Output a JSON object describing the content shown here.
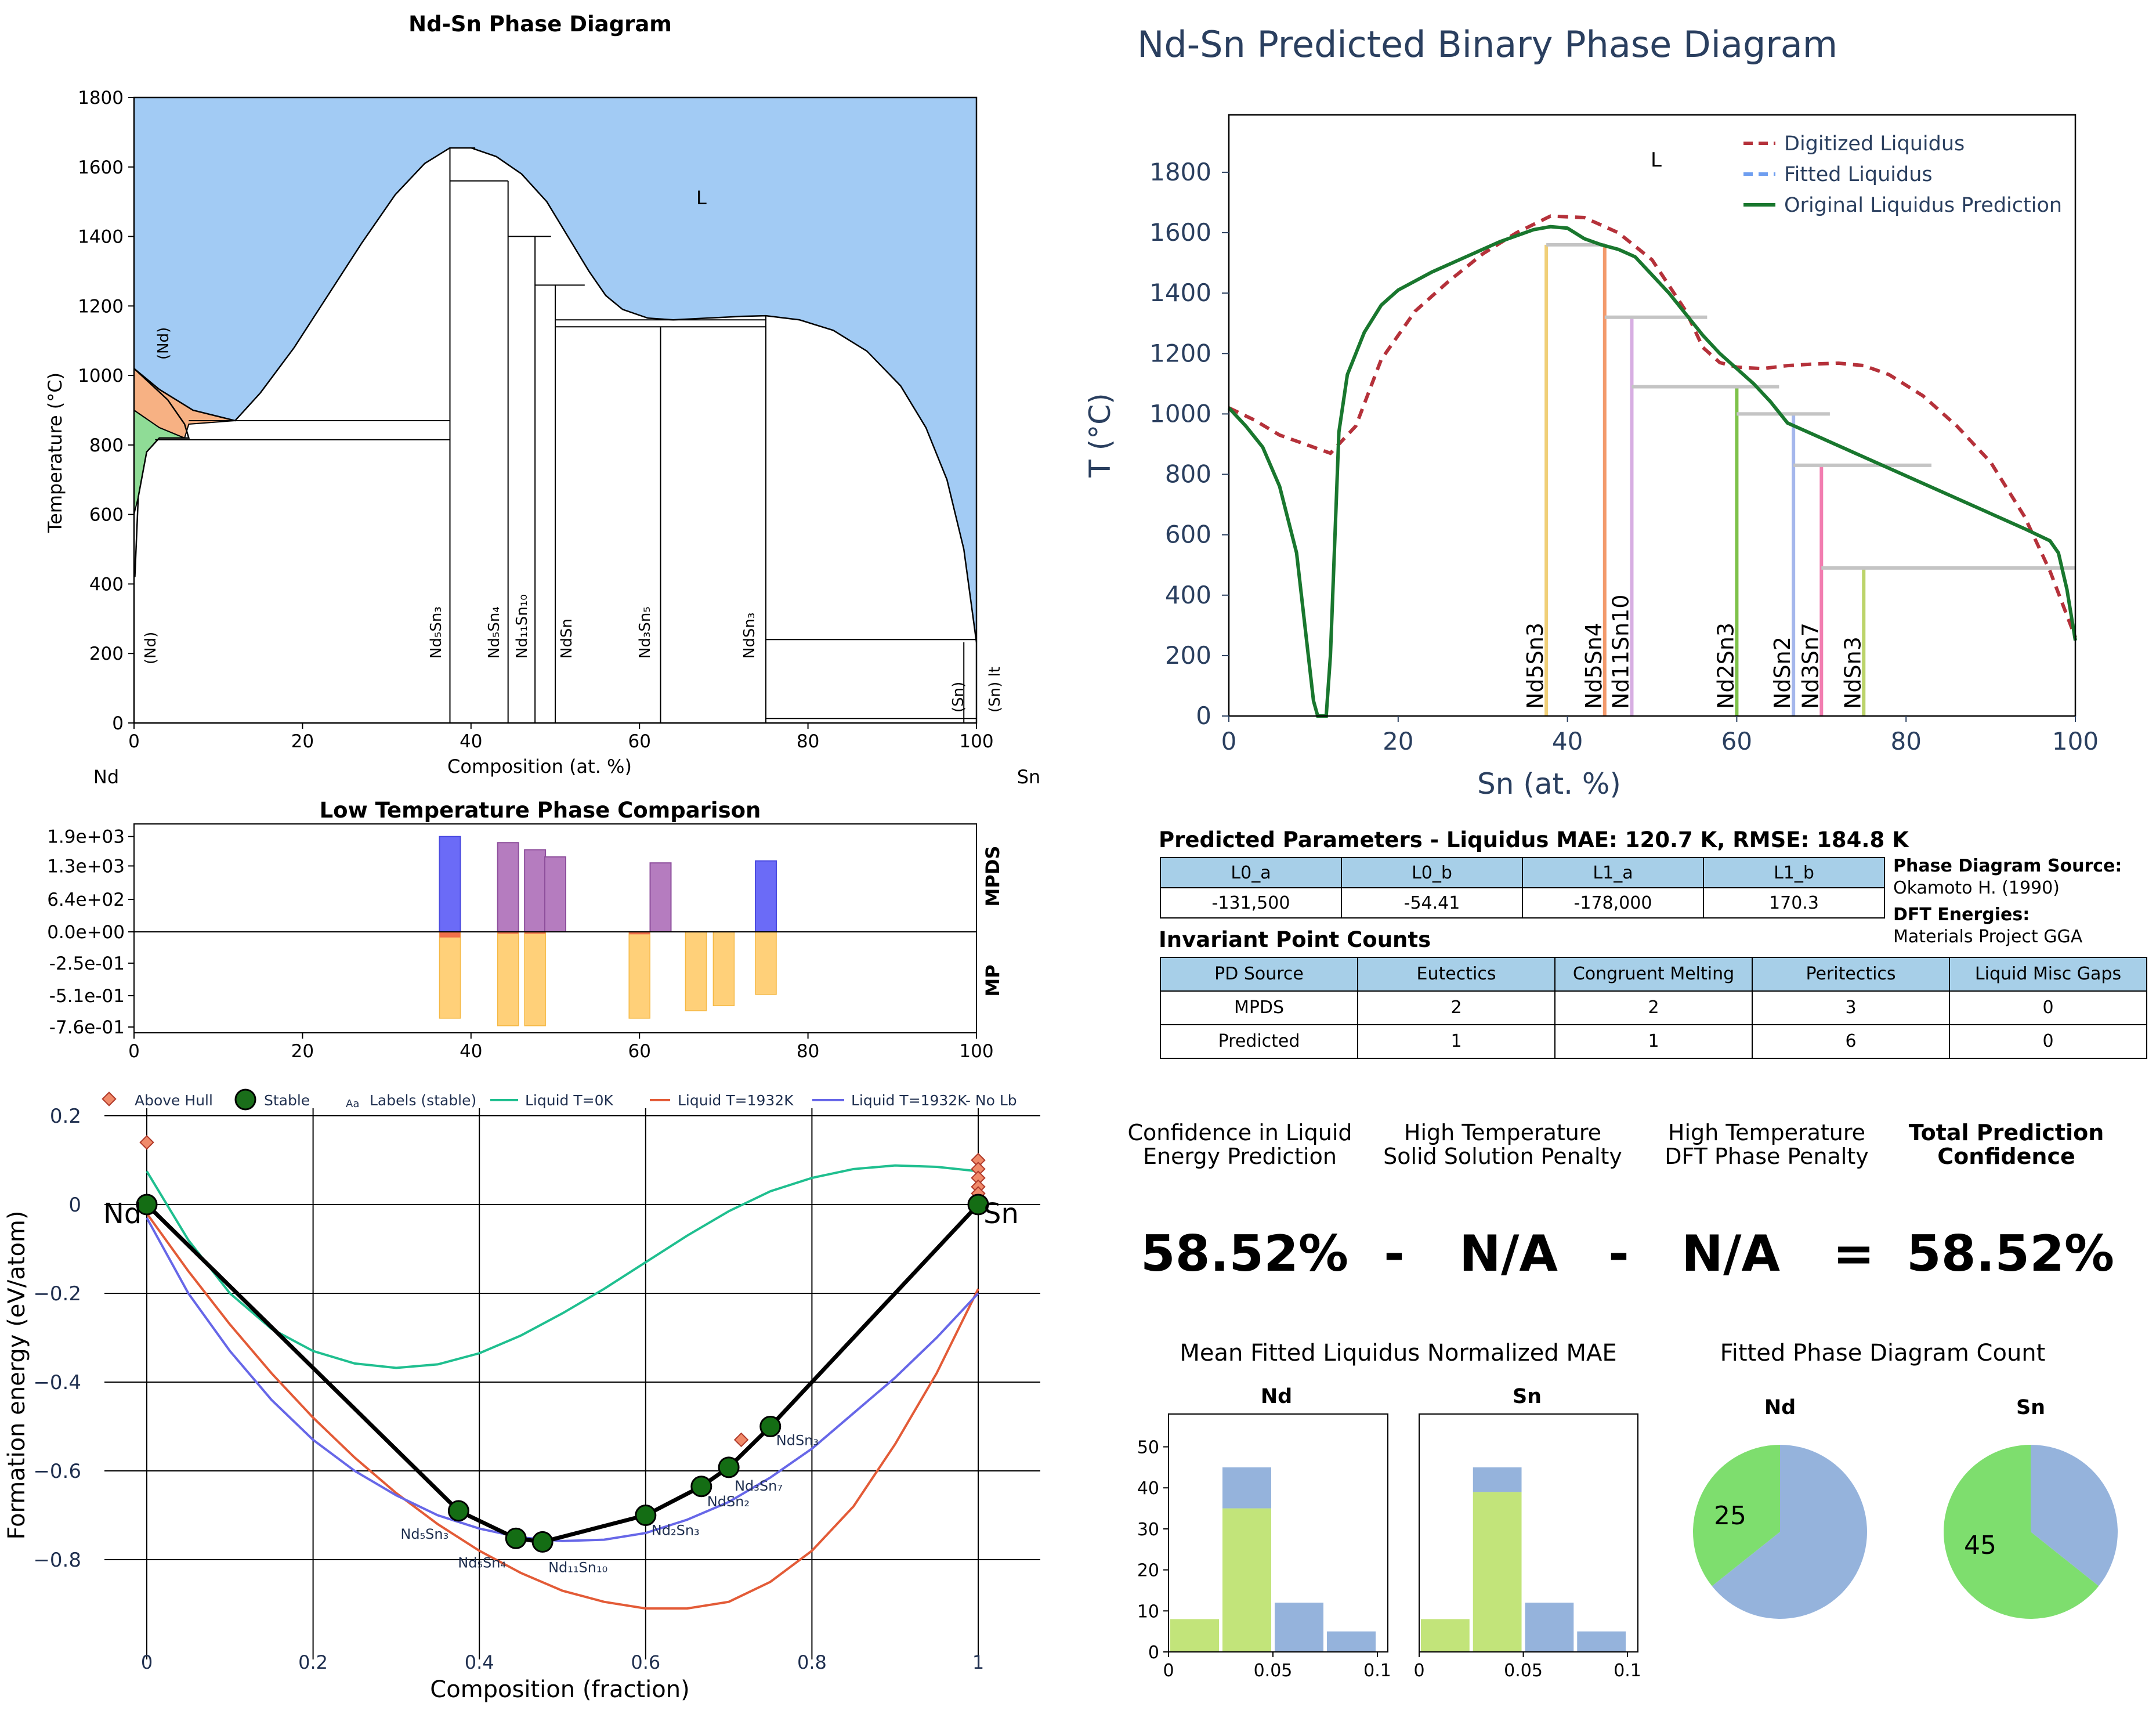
{
  "chart_data": [
    {
      "type": "phase-diagram",
      "panel": "experimental",
      "title": "Nd-Sn Phase Diagram",
      "xlabel": "Composition (at. %)",
      "ylabel": "Temperature (°C)",
      "xlim": [
        0,
        100
      ],
      "ylim": [
        0,
        1800
      ],
      "xticks": [
        "0",
        "20",
        "40",
        "60",
        "80",
        "100"
      ],
      "yticks": [
        "0",
        "200",
        "400",
        "600",
        "800",
        "1000",
        "1200",
        "1400",
        "1600",
        "1800"
      ],
      "left_element": "Nd",
      "right_element": "Sn",
      "region_labels": [
        "L",
        "(Nd)"
      ],
      "liquidus": [
        [
          0,
          1020
        ],
        [
          3,
          960
        ],
        [
          7,
          900
        ],
        [
          12,
          870
        ],
        [
          15,
          950
        ],
        [
          19,
          1080
        ],
        [
          23,
          1230
        ],
        [
          27,
          1380
        ],
        [
          31,
          1520
        ],
        [
          34.5,
          1610
        ],
        [
          37.5,
          1655
        ],
        [
          40,
          1655
        ],
        [
          43,
          1630
        ],
        [
          46,
          1580
        ],
        [
          49,
          1500
        ],
        [
          52,
          1380
        ],
        [
          54,
          1300
        ],
        [
          56,
          1230
        ],
        [
          58,
          1190
        ],
        [
          61,
          1165
        ],
        [
          64,
          1160
        ],
        [
          68,
          1165
        ],
        [
          72,
          1170
        ],
        [
          75,
          1172
        ],
        [
          79,
          1160
        ],
        [
          83,
          1130
        ],
        [
          87,
          1070
        ],
        [
          91,
          970
        ],
        [
          94,
          850
        ],
        [
          96.5,
          700
        ],
        [
          98.5,
          500
        ],
        [
          100,
          232
        ]
      ],
      "solidus_left": [
        [
          0,
          1020
        ],
        [
          4,
          930
        ],
        [
          6,
          860
        ],
        [
          6.5,
          820
        ],
        [
          3,
          820
        ],
        [
          1.5,
          780
        ],
        [
          0.5,
          650
        ],
        [
          0.1,
          420
        ]
      ],
      "phases": [
        {
          "name": "Nd5Sn3",
          "x": 37.5,
          "tmax": 1655
        },
        {
          "name": "Nd5Sn4",
          "x": 44.4,
          "tmax": 1560
        },
        {
          "name": "Nd11Sn10",
          "x": 47.6,
          "tmax": 1400
        },
        {
          "name": "NdSn",
          "x": 50.0,
          "tmax": 1260
        },
        {
          "name": "Nd3Sn5",
          "x": 62.5,
          "tmax": 1140
        },
        {
          "name": "NdSn3",
          "x": 75.0,
          "tmax": 1172
        },
        {
          "name": "(Sn)",
          "x": 98.5,
          "tmax": 232
        },
        {
          "name": "(Sn) lt",
          "x": 100,
          "tmax": 232
        }
      ],
      "horizontal_lines": [
        {
          "t": 1655,
          "x0": 37.5,
          "x1": 40.5
        },
        {
          "t": 1560,
          "x0": 37.5,
          "x1": 44.4
        },
        {
          "t": 1400,
          "x0": 44.4,
          "x1": 49.5
        },
        {
          "t": 1260,
          "x0": 47.6,
          "x1": 53.5
        },
        {
          "t": 1160,
          "x0": 50,
          "x1": 75
        },
        {
          "t": 1140,
          "x0": 50,
          "x1": 75
        },
        {
          "t": 870,
          "x0": 6.5,
          "x1": 37.5
        },
        {
          "t": 815,
          "x0": 2.5,
          "x1": 37.5
        },
        {
          "t": 240,
          "x0": 75,
          "x1": 100
        },
        {
          "t": 13,
          "x0": 75,
          "x1": 100
        }
      ],
      "labels": {
        "L": "L",
        "nd_high": "(Nd)",
        "nd_low": "(Nd)",
        "ph_nd5sn3": "Nd₅Sn₃",
        "ph_nd5sn4": "Nd₅Sn₄",
        "ph_nd11sn10": "Nd₁₁Sn₁₀",
        "ph_ndsn": "NdSn",
        "ph_nd3sn5": "Nd₃Sn₅",
        "ph_ndsn3": "NdSn₃",
        "ph_sn": "(Sn)",
        "ph_snlt": "(Sn) lt"
      }
    },
    {
      "type": "bar",
      "panel": "low-temperature-comparison",
      "title": "Low Temperature Phase Comparison",
      "xlim": [
        0,
        100
      ],
      "xticks": [
        "0",
        "20",
        "40",
        "60",
        "80",
        "100"
      ],
      "yticks": [
        "1.9e+03",
        "1.3e+03",
        "6.4e+02",
        "0.0e+00",
        "-2.5e-01",
        "-5.1e-01",
        "-7.6e-01"
      ],
      "top_label": "MPDS",
      "bottom_label": "MP",
      "mpds_ylim": [
        0,
        1900
      ],
      "mp_ylim": [
        -0.76,
        0
      ],
      "mpds": [
        {
          "x": 37.5,
          "value": 1880,
          "color": "#6b6bf7"
        },
        {
          "x": 44.4,
          "value": 1760,
          "color": "#b57cbf"
        },
        {
          "x": 47.6,
          "value": 1620,
          "color": "#b57cbf"
        },
        {
          "x": 50.0,
          "value": 1480,
          "color": "#b57cbf"
        },
        {
          "x": 62.5,
          "value": 1360,
          "color": "#b57cbf"
        },
        {
          "x": 75.0,
          "value": 1400,
          "color": "#6b6bf7"
        }
      ],
      "mp": [
        {
          "x": 37.5,
          "value": -0.69,
          "red": 0.045
        },
        {
          "x": 44.4,
          "value": -0.75,
          "red": 0.015
        },
        {
          "x": 47.6,
          "value": -0.75,
          "red": 0.015
        },
        {
          "x": 60.0,
          "value": -0.69,
          "red": 0.02
        },
        {
          "x": 66.7,
          "value": -0.63,
          "red": 0.0
        },
        {
          "x": 70.0,
          "value": -0.59,
          "red": 0.0
        },
        {
          "x": 75.0,
          "value": -0.5,
          "red": 0.0
        }
      ]
    },
    {
      "type": "line",
      "panel": "convex-hull",
      "xlabel": "Composition (fraction)",
      "ylabel": "Formation energy (eV/atom)",
      "xlim": [
        -0.02,
        1.02
      ],
      "ylim": [
        -0.9,
        0.2
      ],
      "xticks": [
        "0",
        "0.2",
        "0.4",
        "0.6",
        "0.8",
        "1"
      ],
      "yticks": [
        "0.2",
        "0",
        "−0.2",
        "−0.4",
        "−0.6",
        "−0.8"
      ],
      "legend": [
        "Above Hull",
        "Stable",
        "Labels (stable)",
        "Liquid T=0K",
        "Liquid T=1932K",
        "Liquid T=1932K- No Lb"
      ],
      "legend_aa": "Aa",
      "end_labels": [
        "Nd",
        "Sn"
      ],
      "hull": [
        [
          0,
          0
        ],
        [
          0.375,
          -0.69
        ],
        [
          0.444,
          -0.752
        ],
        [
          0.476,
          -0.76
        ],
        [
          0.6,
          -0.7
        ],
        [
          0.667,
          -0.635
        ],
        [
          0.7,
          -0.592
        ],
        [
          0.75,
          -0.5
        ],
        [
          1,
          0
        ]
      ],
      "stable_labels": [
        "Nd₅Sn₃",
        "Nd₅Sn₄",
        "Nd₁₁Sn₁₀",
        "Nd₂Sn₃",
        "NdSn₂",
        "Nd₃Sn₇",
        "NdSn₃"
      ],
      "above_hull": [
        [
          0,
          0.14
        ],
        [
          0,
          0.005
        ],
        [
          0.715,
          -0.53
        ],
        [
          1,
          0.1
        ],
        [
          1,
          0.08
        ],
        [
          1,
          0.06
        ],
        [
          1,
          0.04
        ],
        [
          1,
          0.025
        ]
      ],
      "series": [
        {
          "name": "Liquid T=0K",
          "color": "#1fbf8f",
          "x": [
            0,
            0.05,
            0.1,
            0.15,
            0.2,
            0.25,
            0.3,
            0.35,
            0.4,
            0.45,
            0.5,
            0.55,
            0.6,
            0.65,
            0.7,
            0.75,
            0.8,
            0.85,
            0.9,
            0.95,
            1
          ],
          "y": [
            0.075,
            -0.08,
            -0.2,
            -0.28,
            -0.33,
            -0.358,
            -0.368,
            -0.36,
            -0.335,
            -0.295,
            -0.245,
            -0.19,
            -0.13,
            -0.07,
            -0.015,
            0.03,
            0.06,
            0.08,
            0.088,
            0.085,
            0.075
          ]
        },
        {
          "name": "Liquid T=1932K",
          "color": "#e35b37",
          "x": [
            0,
            0.05,
            0.1,
            0.15,
            0.2,
            0.25,
            0.3,
            0.35,
            0.4,
            0.45,
            0.5,
            0.55,
            0.6,
            0.65,
            0.7,
            0.75,
            0.8,
            0.85,
            0.9,
            0.95,
            1
          ],
          "y": [
            -0.02,
            -0.15,
            -0.27,
            -0.38,
            -0.48,
            -0.57,
            -0.65,
            -0.72,
            -0.78,
            -0.83,
            -0.87,
            -0.895,
            -0.91,
            -0.91,
            -0.895,
            -0.85,
            -0.78,
            -0.68,
            -0.54,
            -0.38,
            -0.19
          ]
        },
        {
          "name": "Liquid T=1932K- No Lb",
          "color": "#6767e8",
          "x": [
            0,
            0.05,
            0.1,
            0.15,
            0.2,
            0.25,
            0.3,
            0.35,
            0.4,
            0.45,
            0.5,
            0.55,
            0.6,
            0.65,
            0.7,
            0.75,
            0.8,
            0.85,
            0.9,
            0.95,
            1
          ],
          "y": [
            -0.03,
            -0.2,
            -0.33,
            -0.44,
            -0.53,
            -0.6,
            -0.655,
            -0.7,
            -0.73,
            -0.75,
            -0.758,
            -0.755,
            -0.74,
            -0.71,
            -0.67,
            -0.615,
            -0.55,
            -0.47,
            -0.39,
            -0.3,
            -0.2
          ]
        }
      ]
    },
    {
      "type": "phase-diagram",
      "panel": "predicted",
      "title": "Nd-Sn Predicted Binary Phase Diagram",
      "xlabel": "Sn (at. %)",
      "ylabel": "T (°C)",
      "xlim": [
        0,
        100
      ],
      "ylim": [
        0,
        1990
      ],
      "xticks": [
        "0",
        "20",
        "40",
        "60",
        "80",
        "100"
      ],
      "yticks": [
        "0",
        "200",
        "400",
        "600",
        "800",
        "1000",
        "1200",
        "1400",
        "1600",
        "1800"
      ],
      "region_label": "L",
      "legend": [
        "Digitized Liquidus",
        "Fitted Liquidus",
        "Original Liquidus Prediction"
      ],
      "series": [
        {
          "name": "Digitized Liquidus",
          "color": "#b5313a",
          "x": [
            0,
            3,
            6,
            9,
            12,
            15,
            18,
            22,
            26,
            30,
            34,
            38,
            42,
            46,
            50,
            54,
            56,
            58,
            60,
            63,
            66,
            69,
            72,
            75,
            78,
            82,
            86,
            90,
            94,
            97,
            100
          ],
          "y": [
            1020,
            980,
            930,
            900,
            870,
            960,
            1180,
            1340,
            1440,
            1530,
            1600,
            1655,
            1650,
            1600,
            1510,
            1340,
            1220,
            1170,
            1155,
            1150,
            1160,
            1165,
            1168,
            1160,
            1130,
            1060,
            960,
            840,
            660,
            480,
            260
          ]
        },
        {
          "name": "Original Liquidus Prediction",
          "color": "#19772e",
          "x": [
            0,
            2,
            4,
            6,
            8,
            10,
            10.5,
            11,
            11.5,
            12,
            13,
            14,
            16,
            18,
            20,
            24,
            28,
            32,
            36,
            38,
            40,
            42,
            44,
            46,
            48,
            50,
            52,
            54,
            56,
            58,
            60,
            62,
            64,
            66,
            70,
            74,
            78,
            82,
            86,
            90,
            94,
            97,
            98,
            99,
            100
          ],
          "y": [
            1020,
            960,
            890,
            760,
            540,
            50,
            0,
            0,
            0,
            200,
            940,
            1130,
            1270,
            1360,
            1410,
            1470,
            1520,
            1570,
            1610,
            1620,
            1615,
            1580,
            1560,
            1545,
            1520,
            1460,
            1400,
            1330,
            1260,
            1200,
            1150,
            1100,
            1040,
            970,
            920,
            870,
            820,
            770,
            720,
            670,
            620,
            580,
            540,
            420,
            250
          ]
        }
      ],
      "phases": [
        {
          "name": "Nd5Sn3",
          "x": 37.5,
          "tmax": 1560,
          "color": "#f0cf78"
        },
        {
          "name": "Nd5Sn4",
          "x": 44.4,
          "tmax": 1560,
          "color": "#f39a6c"
        },
        {
          "name": "Nd11Sn10",
          "x": 47.6,
          "tmax": 1320,
          "color": "#d7aee2"
        },
        {
          "name": "Nd2Sn3",
          "x": 60.0,
          "tmax": 1090,
          "color": "#7ec24a"
        },
        {
          "name": "NdSn2",
          "x": 66.7,
          "tmax": 1000,
          "color": "#a5b7ec"
        },
        {
          "name": "Nd3Sn7",
          "x": 70.0,
          "tmax": 830,
          "color": "#f27db0"
        },
        {
          "name": "NdSn3",
          "x": 75.0,
          "tmax": 490,
          "color": "#bcd46a"
        }
      ],
      "tie_lines": [
        {
          "t": 1560,
          "x0": 37.5,
          "x1": 44.4
        },
        {
          "t": 1320,
          "x0": 44.4,
          "x1": 56.5
        },
        {
          "t": 1090,
          "x0": 47.6,
          "x1": 65.0
        },
        {
          "t": 1000,
          "x0": 60.0,
          "x1": 71.0
        },
        {
          "t": 830,
          "x0": 66.7,
          "x1": 83.0
        },
        {
          "t": 490,
          "x0": 70.0,
          "x1": 100.0
        }
      ]
    }
  ],
  "params": {
    "title": "Predicted Parameters - Liquidus MAE: 120.7 K, RMSE: 184.8 K",
    "headers": [
      "L0_a",
      "L0_b",
      "L1_a",
      "L1_b"
    ],
    "values": [
      "-131,500",
      "-54.41",
      "-178,000",
      "170.3"
    ]
  },
  "source": {
    "pd_label": "Phase Diagram Source:",
    "pd_value": "Okamoto H. (1990)",
    "dft_label": "DFT Energies:",
    "dft_value": "Materials Project GGA"
  },
  "invariant": {
    "title": "Invariant Point Counts",
    "headers": [
      "PD Source",
      "Eutectics",
      "Congruent Melting",
      "Peritectics",
      "Liquid Misc Gaps"
    ],
    "rows": [
      [
        "MPDS",
        "2",
        "2",
        "3",
        "0"
      ],
      [
        "Predicted",
        "1",
        "1",
        "6",
        "0"
      ]
    ]
  },
  "confidence": {
    "h1a": "Confidence in Liquid",
    "h1b": "Energy Prediction",
    "h2a": "High Temperature",
    "h2b": "Solid Solution Penalty",
    "h3a": "High Temperature",
    "h3b": "DFT Phase Penalty",
    "h4a": "Total Prediction",
    "h4b": "Confidence",
    "v1": "58.52%",
    "op1": "-",
    "v2": "N/A",
    "op2": "-",
    "v3": "N/A",
    "op3": "=",
    "v4": "58.52%"
  },
  "mae_hist": {
    "title": "Mean Fitted Liquidus Normalized MAE",
    "ylim": [
      0,
      58
    ],
    "yticks": [
      "0",
      "10",
      "20",
      "30",
      "40",
      "50"
    ],
    "xticks": [
      "0",
      "0.05",
      "0.1"
    ],
    "bins": [
      0,
      0.025,
      0.05,
      0.075,
      0.1
    ],
    "green": "#c2e47a",
    "blue": "#95b3dc",
    "panels": [
      {
        "title": "Nd",
        "green": [
          8,
          35,
          0,
          0
        ],
        "blue": [
          0,
          10,
          12,
          5
        ]
      },
      {
        "title": "Sn",
        "green": [
          8,
          39,
          0,
          0
        ],
        "blue": [
          0,
          6,
          12,
          5
        ]
      }
    ]
  },
  "pd_count": {
    "title": "Fitted Phase Diagram Count",
    "panels": [
      {
        "title": "Nd",
        "green": 25,
        "blue": 45,
        "label": "25"
      },
      {
        "title": "Sn",
        "green": 45,
        "blue": 25,
        "label": "45"
      }
    ],
    "green": "#7ede6e",
    "blue": "#95b3dc"
  }
}
